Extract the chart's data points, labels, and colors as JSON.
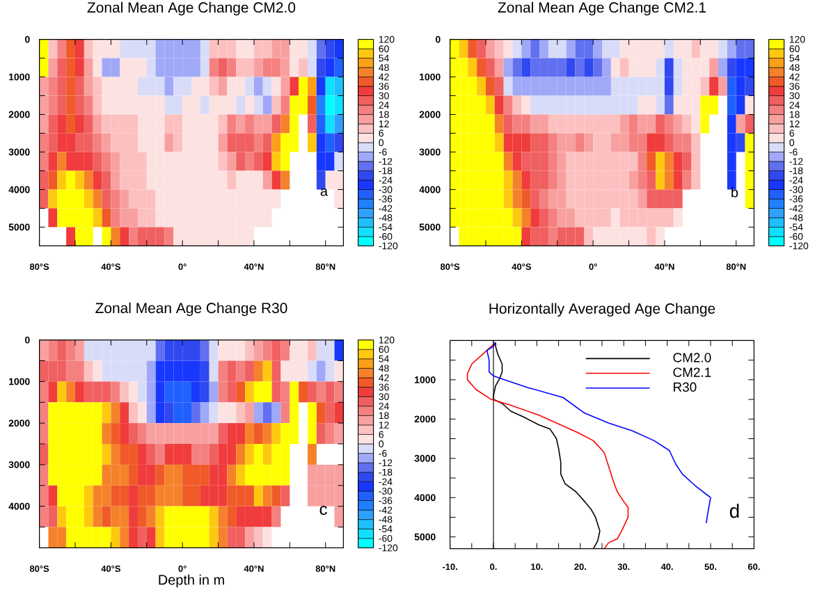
{
  "chart_data": [
    {
      "type": "heatmap",
      "title": "Zonal Mean Age Change CM2.0",
      "x": [
        -77.5,
        -72.5,
        -67.5,
        -62.5,
        -57.5,
        -52.5,
        -47.5,
        -42.5,
        -37.5,
        -32.5,
        -27.5,
        -22.5,
        -17.5,
        -12.5,
        -7.5,
        -2.5,
        2.5,
        7.5,
        12.5,
        17.5,
        22.5,
        27.5,
        32.5,
        37.5,
        42.5,
        47.5,
        52.5,
        57.5,
        62.5,
        67.5,
        72.5,
        77.5,
        82.5,
        87.5
      ],
      "y": [
        250,
        750,
        1250,
        1750,
        2250,
        2750,
        3250,
        3750,
        4250,
        4750,
        5250
      ],
      "cells": [
        [
          63,
          9,
          21,
          39,
          33,
          9,
          3,
          3,
          3,
          -3,
          -3,
          -3,
          -3,
          -9,
          -9,
          -9,
          -9,
          -9,
          -3,
          9,
          9,
          9,
          3,
          3,
          9,
          9,
          15,
          15,
          3,
          3,
          -3,
          -15,
          -21,
          -27
        ],
        [
          63,
          15,
          27,
          39,
          33,
          15,
          3,
          -9,
          -9,
          3,
          3,
          3,
          -3,
          -9,
          -9,
          -9,
          -9,
          -9,
          -3,
          21,
          27,
          21,
          9,
          9,
          15,
          21,
          21,
          15,
          3,
          9,
          -3,
          -21,
          -27,
          -33
        ],
        [
          15,
          21,
          27,
          39,
          27,
          15,
          9,
          3,
          3,
          3,
          3,
          -3,
          -3,
          -3,
          -9,
          -3,
          -3,
          3,
          3,
          9,
          15,
          3,
          3,
          -3,
          -9,
          -3,
          3,
          15,
          33,
          63,
          51,
          -27,
          -57,
          -51
        ],
        [
          15,
          21,
          27,
          39,
          27,
          21,
          9,
          3,
          3,
          3,
          3,
          3,
          3,
          3,
          -3,
          -3,
          3,
          3,
          -3,
          3,
          3,
          3,
          -3,
          3,
          -3,
          -9,
          9,
          21,
          63,
          63,
          39,
          -39,
          -63,
          -57
        ],
        [
          15,
          27,
          33,
          39,
          33,
          27,
          15,
          9,
          9,
          9,
          9,
          3,
          3,
          3,
          9,
          9,
          3,
          3,
          3,
          3,
          9,
          21,
          15,
          21,
          15,
          15,
          27,
          45,
          63,
          null,
          27,
          -33,
          -57,
          -45
        ],
        [
          21,
          27,
          33,
          33,
          27,
          27,
          21,
          15,
          9,
          9,
          9,
          3,
          3,
          3,
          15,
          9,
          3,
          3,
          3,
          3,
          15,
          27,
          27,
          27,
          21,
          27,
          51,
          63,
          63,
          null,
          57,
          -27,
          -33,
          -21
        ],
        [
          21,
          33,
          45,
          33,
          33,
          33,
          27,
          21,
          15,
          9,
          9,
          9,
          3,
          3,
          3,
          3,
          3,
          3,
          3,
          3,
          9,
          15,
          27,
          21,
          27,
          33,
          57,
          63,
          null,
          null,
          null,
          -27,
          -27,
          -3
        ],
        [
          27,
          39,
          57,
          63,
          57,
          45,
          33,
          27,
          15,
          9,
          9,
          9,
          3,
          3,
          3,
          3,
          3,
          3,
          3,
          3,
          3,
          9,
          3,
          3,
          3,
          15,
          33,
          45,
          null,
          null,
          null,
          -21,
          3,
          3
        ],
        [
          27,
          57,
          63,
          63,
          63,
          57,
          45,
          27,
          21,
          15,
          9,
          9,
          9,
          3,
          3,
          3,
          3,
          3,
          3,
          3,
          3,
          3,
          3,
          3,
          3,
          3,
          3,
          null,
          null,
          null,
          null,
          null,
          null,
          3
        ],
        [
          null,
          33,
          63,
          63,
          63,
          63,
          57,
          39,
          21,
          15,
          15,
          9,
          9,
          3,
          3,
          3,
          3,
          3,
          3,
          3,
          3,
          3,
          3,
          3,
          3,
          3,
          null,
          null,
          null,
          null,
          null,
          null,
          null,
          null
        ],
        [
          null,
          null,
          null,
          33,
          63,
          63,
          null,
          63,
          45,
          33,
          21,
          27,
          27,
          27,
          21,
          3,
          3,
          3,
          3,
          3,
          3,
          3,
          3,
          3,
          null,
          null,
          null,
          null,
          null,
          null,
          null,
          null,
          null,
          null
        ]
      ],
      "clim": [
        -66,
        66
      ],
      "cticks": [
        -60,
        -54,
        -48,
        -42,
        -36,
        -30,
        -24,
        -18,
        -12,
        -6,
        0,
        6,
        12,
        18,
        24,
        30,
        36,
        42,
        48,
        54,
        60
      ],
      "colors": [
        "#00ffff",
        "#10e0ff",
        "#20c0ff",
        "#30a0ff",
        "#2080ff",
        "#2060ff",
        "#1838ff",
        "#3048f0",
        "#6070f0",
        "#a0a8f8",
        "#d8dcf8",
        "#fde2e2",
        "#fcc0c0",
        "#f8a0a0",
        "#f58080",
        "#f06060",
        "#f03c3c",
        "#f05a28",
        "#f5822a",
        "#fba018",
        "#ffc810",
        "#ffff00"
      ],
      "xlim": [
        -80,
        90
      ],
      "ylim": [
        5500,
        0
      ],
      "xticks": [
        {
          "value": -80,
          "label": "80°S"
        },
        {
          "value": -60,
          "label": null
        },
        {
          "value": -40,
          "label": "40°S"
        },
        {
          "value": -20,
          "label": null
        },
        {
          "value": 0,
          "label": "0°"
        },
        {
          "value": 20,
          "label": null
        },
        {
          "value": 40,
          "label": "40°N"
        },
        {
          "value": 60,
          "label": null
        },
        {
          "value": 80,
          "label": "80°N"
        }
      ],
      "yticks": [
        0,
        {
          "value": 500,
          "label": null
        },
        1000,
        {
          "value": 1500,
          "label": null
        },
        2000,
        {
          "value": 2500,
          "label": null
        },
        3000,
        {
          "value": 3500,
          "label": null
        },
        4000,
        {
          "value": 4500,
          "label": null
        },
        5000
      ],
      "annotations": [
        "a",
        "-120",
        "120"
      ]
    },
    {
      "type": "heatmap",
      "title": "Zonal Mean Age Change CM2.1",
      "x": [
        -77.5,
        -72.5,
        -67.5,
        -62.5,
        -57.5,
        -52.5,
        -47.5,
        -42.5,
        -37.5,
        -32.5,
        -27.5,
        -22.5,
        -17.5,
        -12.5,
        -7.5,
        -2.5,
        2.5,
        7.5,
        12.5,
        17.5,
        22.5,
        27.5,
        32.5,
        37.5,
        42.5,
        47.5,
        52.5,
        57.5,
        62.5,
        67.5,
        72.5,
        77.5,
        82.5,
        87.5
      ],
      "y": [
        250,
        750,
        1250,
        1750,
        2250,
        2750,
        3250,
        3750,
        4250,
        4750,
        5250
      ],
      "cells": [
        [
          63,
          57,
          39,
          27,
          15,
          9,
          3,
          -3,
          -9,
          -15,
          -9,
          -3,
          -3,
          -9,
          -15,
          -15,
          -9,
          -3,
          -3,
          3,
          3,
          3,
          3,
          3,
          -3,
          3,
          3,
          9,
          3,
          3,
          -3,
          -9,
          -15,
          -15
        ],
        [
          63,
          63,
          57,
          39,
          27,
          15,
          -9,
          -15,
          -21,
          -15,
          -15,
          -15,
          -15,
          -21,
          -15,
          -21,
          -15,
          -9,
          3,
          9,
          3,
          3,
          3,
          -3,
          -21,
          -3,
          3,
          3,
          3,
          15,
          -9,
          -21,
          -27,
          -27
        ],
        [
          63,
          63,
          63,
          57,
          39,
          27,
          -3,
          -9,
          -9,
          -9,
          -9,
          -9,
          -9,
          -9,
          -9,
          -9,
          -9,
          -9,
          -3,
          -3,
          -3,
          -3,
          -3,
          -3,
          -21,
          -3,
          3,
          3,
          9,
          33,
          15,
          -33,
          -27,
          -21
        ],
        [
          63,
          63,
          63,
          63,
          57,
          33,
          21,
          9,
          3,
          -3,
          -3,
          -3,
          -3,
          -3,
          -3,
          -3,
          -3,
          -3,
          -3,
          -3,
          -3,
          3,
          3,
          -3,
          -15,
          3,
          3,
          3,
          63,
          63,
          null,
          -33,
          -27,
          3
        ],
        [
          63,
          63,
          63,
          63,
          63,
          45,
          27,
          21,
          21,
          15,
          15,
          9,
          9,
          9,
          9,
          9,
          9,
          9,
          9,
          15,
          21,
          15,
          15,
          27,
          21,
          15,
          9,
          3,
          63,
          null,
          null,
          -27,
          15,
          27
        ],
        [
          63,
          63,
          63,
          63,
          63,
          57,
          33,
          33,
          33,
          27,
          27,
          21,
          15,
          15,
          21,
          15,
          9,
          9,
          15,
          15,
          21,
          21,
          33,
          33,
          27,
          21,
          21,
          9,
          null,
          null,
          null,
          -27,
          -21,
          63
        ],
        [
          63,
          63,
          63,
          63,
          63,
          63,
          45,
          33,
          27,
          27,
          27,
          21,
          15,
          9,
          9,
          9,
          9,
          9,
          9,
          9,
          9,
          21,
          39,
          57,
          45,
          33,
          27,
          9,
          null,
          null,
          null,
          -27,
          null,
          63
        ],
        [
          63,
          63,
          63,
          63,
          63,
          63,
          57,
          45,
          33,
          27,
          27,
          21,
          15,
          9,
          9,
          9,
          9,
          9,
          9,
          9,
          15,
          21,
          27,
          57,
          45,
          33,
          21,
          9,
          null,
          null,
          null,
          -27,
          null,
          63
        ],
        [
          63,
          63,
          63,
          63,
          63,
          63,
          57,
          45,
          39,
          27,
          21,
          15,
          15,
          9,
          9,
          9,
          9,
          9,
          9,
          9,
          9,
          15,
          27,
          27,
          27,
          27,
          null,
          null,
          null,
          null,
          null,
          null,
          null,
          63
        ],
        [
          63,
          63,
          63,
          63,
          63,
          63,
          63,
          57,
          45,
          33,
          27,
          21,
          15,
          15,
          9,
          9,
          9,
          9,
          3,
          9,
          9,
          9,
          9,
          9,
          9,
          3,
          null,
          null,
          null,
          null,
          null,
          null,
          null,
          null
        ],
        [
          null,
          63,
          63,
          63,
          63,
          63,
          63,
          63,
          33,
          27,
          27,
          21,
          27,
          27,
          27,
          9,
          3,
          3,
          3,
          3,
          3,
          3,
          9,
          3,
          null,
          null,
          null,
          null,
          null,
          null,
          null,
          null,
          null,
          null
        ]
      ],
      "clim": [
        -66,
        66
      ],
      "cticks": [
        -60,
        -54,
        -48,
        -42,
        -36,
        -30,
        -24,
        -18,
        -12,
        -6,
        0,
        6,
        12,
        18,
        24,
        30,
        36,
        42,
        48,
        54,
        60
      ],
      "colors": [
        "#00ffff",
        "#10e0ff",
        "#20c0ff",
        "#30a0ff",
        "#2080ff",
        "#2060ff",
        "#1838ff",
        "#3048f0",
        "#6070f0",
        "#a0a8f8",
        "#d8dcf8",
        "#fde2e2",
        "#fcc0c0",
        "#f8a0a0",
        "#f58080",
        "#f06060",
        "#f03c3c",
        "#f05a28",
        "#f5822a",
        "#fba018",
        "#ffc810",
        "#ffff00"
      ],
      "xlim": [
        -80,
        90
      ],
      "ylim": [
        5500,
        0
      ],
      "xticks": [
        {
          "value": -80,
          "label": "80°S"
        },
        {
          "value": -60,
          "label": null
        },
        {
          "value": -40,
          "label": "40°S"
        },
        {
          "value": -20,
          "label": null
        },
        {
          "value": 0,
          "label": "0°"
        },
        {
          "value": 20,
          "label": null
        },
        {
          "value": 40,
          "label": "40°N"
        },
        {
          "value": 60,
          "label": null
        },
        {
          "value": 80,
          "label": "80°N"
        }
      ],
      "yticks": [
        0,
        {
          "value": 500,
          "label": null
        },
        1000,
        {
          "value": 1500,
          "label": null
        },
        2000,
        {
          "value": 2500,
          "label": null
        },
        3000,
        {
          "value": 3500,
          "label": null
        },
        4000,
        {
          "value": 4500,
          "label": null
        },
        5000
      ],
      "annotations": [
        "b",
        "-120",
        "120"
      ]
    },
    {
      "type": "heatmap",
      "title": "Zonal Mean Age Change R30",
      "xlabel": "Depth in m",
      "x": [
        -77.5,
        -72.5,
        -67.5,
        -62.5,
        -57.5,
        -52.5,
        -47.5,
        -42.5,
        -37.5,
        -32.5,
        -27.5,
        -22.5,
        -17.5,
        -12.5,
        -7.5,
        -2.5,
        2.5,
        7.5,
        12.5,
        17.5,
        22.5,
        27.5,
        32.5,
        37.5,
        42.5,
        47.5,
        52.5,
        57.5,
        62.5,
        67.5,
        72.5,
        77.5,
        82.5,
        87.5
      ],
      "y": [
        250,
        750,
        1250,
        1750,
        2250,
        2750,
        3250,
        3750,
        4250,
        4750
      ],
      "cells": [
        [
          15,
          21,
          27,
          21,
          15,
          -3,
          -3,
          -3,
          -3,
          -3,
          -3,
          -3,
          -3,
          -15,
          -21,
          -21,
          -21,
          -21,
          -15,
          -3,
          3,
          3,
          3,
          9,
          15,
          21,
          27,
          21,
          3,
          3,
          9,
          -3,
          -3,
          -27
        ],
        [
          27,
          27,
          27,
          21,
          21,
          9,
          3,
          -3,
          -3,
          -3,
          -3,
          -3,
          -9,
          -27,
          -27,
          -27,
          -27,
          -27,
          -21,
          -3,
          21,
          27,
          21,
          27,
          45,
          57,
          27,
          3,
          3,
          3,
          -3,
          -9,
          -3,
          3
        ],
        [
          21,
          33,
          57,
          45,
          33,
          27,
          27,
          27,
          21,
          9,
          3,
          -3,
          -9,
          -27,
          -33,
          -33,
          -33,
          -27,
          -21,
          -9,
          21,
          27,
          39,
          57,
          63,
          63,
          27,
          21,
          63,
          39,
          27,
          21,
          27,
          21
        ],
        [
          21,
          63,
          63,
          63,
          63,
          63,
          63,
          57,
          45,
          33,
          9,
          3,
          -9,
          -27,
          -21,
          -33,
          -33,
          -15,
          -9,
          -3,
          3,
          3,
          9,
          15,
          -9,
          -15,
          -9,
          21,
          63,
          null,
          63,
          39,
          27,
          33
        ],
        [
          21,
          63,
          63,
          63,
          63,
          63,
          63,
          45,
          39,
          33,
          27,
          21,
          15,
          15,
          15,
          15,
          15,
          15,
          15,
          15,
          27,
          33,
          33,
          45,
          39,
          45,
          57,
          63,
          63,
          null,
          63,
          27,
          21,
          15
        ],
        [
          27,
          63,
          63,
          63,
          63,
          63,
          63,
          57,
          45,
          39,
          39,
          33,
          27,
          21,
          33,
          33,
          33,
          21,
          21,
          27,
          33,
          33,
          45,
          57,
          63,
          57,
          63,
          63,
          null,
          null,
          45,
          null,
          null,
          null
        ],
        [
          21,
          63,
          63,
          63,
          63,
          63,
          63,
          45,
          45,
          45,
          39,
          33,
          33,
          39,
          45,
          45,
          39,
          39,
          39,
          33,
          33,
          45,
          57,
          63,
          63,
          63,
          63,
          63,
          null,
          null,
          15,
          15,
          15,
          15
        ],
        [
          21,
          33,
          63,
          63,
          63,
          57,
          45,
          45,
          39,
          39,
          33,
          39,
          39,
          45,
          45,
          45,
          39,
          39,
          33,
          33,
          33,
          39,
          39,
          39,
          57,
          45,
          39,
          27,
          null,
          null,
          15,
          15,
          15,
          15
        ],
        [
          21,
          27,
          57,
          63,
          63,
          57,
          45,
          39,
          45,
          45,
          33,
          39,
          45,
          57,
          63,
          63,
          63,
          63,
          63,
          57,
          45,
          39,
          33,
          33,
          33,
          33,
          21,
          null,
          null,
          null,
          null,
          null,
          null,
          15
        ],
        [
          null,
          45,
          45,
          63,
          63,
          63,
          63,
          63,
          57,
          45,
          33,
          27,
          33,
          57,
          63,
          63,
          63,
          63,
          63,
          57,
          45,
          27,
          27,
          15,
          9,
          3,
          null,
          null,
          null,
          null,
          null,
          null,
          null,
          null
        ]
      ],
      "clim": [
        -66,
        66
      ],
      "cticks": [
        -60,
        -54,
        -48,
        -42,
        -36,
        -30,
        -24,
        -18,
        -12,
        -6,
        0,
        6,
        12,
        18,
        24,
        30,
        36,
        42,
        48,
        54,
        60
      ],
      "colors": [
        "#00ffff",
        "#10e0ff",
        "#20c0ff",
        "#30a0ff",
        "#2080ff",
        "#2060ff",
        "#1838ff",
        "#3048f0",
        "#6070f0",
        "#a0a8f8",
        "#d8dcf8",
        "#fde2e2",
        "#fcc0c0",
        "#f8a0a0",
        "#f58080",
        "#f06060",
        "#f03c3c",
        "#f05a28",
        "#f5822a",
        "#fba018",
        "#ffc810",
        "#ffff00"
      ],
      "xlim": [
        -80,
        90
      ],
      "ylim": [
        5000,
        0
      ],
      "xticks": [
        {
          "value": -80,
          "label": "80°S"
        },
        {
          "value": -60,
          "label": null
        },
        {
          "value": -40,
          "label": "40°S"
        },
        {
          "value": -20,
          "label": null
        },
        {
          "value": 0,
          "label": "0°"
        },
        {
          "value": 20,
          "label": null
        },
        {
          "value": 40,
          "label": "40°N"
        },
        {
          "value": 60,
          "label": null
        },
        {
          "value": 80,
          "label": "80°N"
        }
      ],
      "yticks": [
        0,
        {
          "value": 500,
          "label": null
        },
        1000,
        {
          "value": 1500,
          "label": null
        },
        2000,
        {
          "value": 2500,
          "label": null
        },
        3000,
        {
          "value": 3500,
          "label": null
        },
        4000,
        {
          "value": 4500,
          "label": null
        }
      ],
      "annotations": [
        "c",
        "-120",
        "120"
      ]
    },
    {
      "type": "line",
      "title": "Horizontally Averaged Age Change",
      "series": [
        {
          "name": "CM2.0",
          "color": "#000000",
          "x": [
            0.5,
            0.5,
            1,
            2,
            2,
            1.5,
            0.5,
            0,
            0,
            2,
            4,
            7,
            10.5,
            13,
            14.5,
            15,
            15.5,
            15.5,
            16.5,
            19,
            21,
            22.5,
            23.5,
            24.5,
            24,
            23
          ],
          "values": [
            50,
            150,
            350,
            600,
            800,
            950,
            1150,
            1400,
            1500,
            1600,
            1800,
            1950,
            2150,
            2250,
            2500,
            2750,
            3100,
            3400,
            3650,
            3850,
            4100,
            4300,
            4500,
            4850,
            5100,
            5300
          ]
        },
        {
          "name": "CM2.1",
          "color": "#ff0000",
          "x": [
            0.5,
            -0.5,
            -2.5,
            -5,
            -6,
            -6,
            -4,
            -0.5,
            4,
            10.5,
            15.5,
            19.5,
            23,
            25.5,
            27.5,
            28.5,
            30,
            31,
            31,
            29.5,
            28.5,
            26.5,
            25.5
          ],
          "values": [
            50,
            150,
            350,
            600,
            850,
            1000,
            1250,
            1500,
            1650,
            1900,
            2150,
            2350,
            2550,
            2850,
            3550,
            3850,
            4100,
            4250,
            4500,
            4850,
            5050,
            5150,
            5300
          ]
        },
        {
          "name": "R30",
          "color": "#0000ff",
          "x": [
            0.5,
            0,
            -1.5,
            -1,
            -1,
            0,
            2.5,
            8,
            16,
            21,
            26.5,
            32,
            37,
            40.5,
            42,
            43.5,
            46.5,
            50,
            49.5,
            49
          ],
          "values": [
            50,
            150,
            250,
            500,
            800,
            900,
            1000,
            1200,
            1450,
            1850,
            2100,
            2300,
            2550,
            2800,
            3150,
            3400,
            3700,
            4000,
            4300,
            4650
          ]
        }
      ],
      "xlim": [
        -10,
        60
      ],
      "ylim": [
        5300,
        0
      ],
      "xticks": [
        {
          "value": -10,
          "label": "-10."
        },
        {
          "value": -5,
          "label": null
        },
        {
          "value": 0,
          "label": "0."
        },
        {
          "value": 5,
          "label": null
        },
        {
          "value": 10,
          "label": "10."
        },
        {
          "value": 15,
          "label": null
        },
        {
          "value": 20,
          "label": "20."
        },
        {
          "value": 25,
          "label": null
        },
        {
          "value": 30,
          "label": "30."
        },
        {
          "value": 35,
          "label": null
        },
        {
          "value": 40,
          "label": "40."
        },
        {
          "value": 45,
          "label": null
        },
        {
          "value": 50,
          "label": "50."
        },
        {
          "value": 55,
          "label": null
        },
        {
          "value": 60,
          "label": "60."
        }
      ],
      "yticks": [
        {
          "value": 500,
          "label": null
        },
        1000,
        {
          "value": 1500,
          "label": null
        },
        2000,
        {
          "value": 2500,
          "label": null
        },
        3000,
        {
          "value": 3500,
          "label": null
        },
        4000,
        {
          "value": 4500,
          "label": null
        },
        5000
      ],
      "ref_lines": [
        {
          "axis": "x",
          "value": 0,
          "color": "#333333"
        }
      ],
      "legend": "top right",
      "annotations": [
        "d"
      ]
    }
  ]
}
